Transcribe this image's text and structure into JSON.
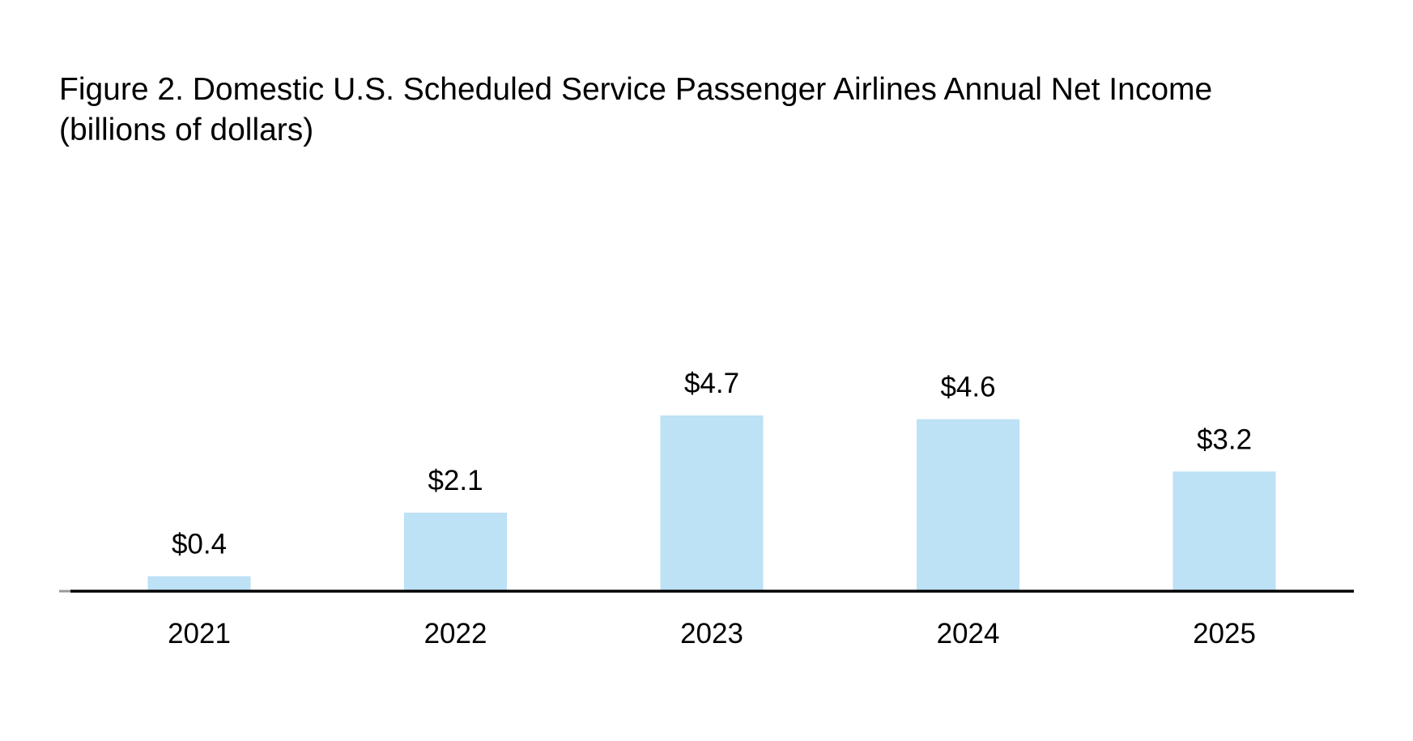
{
  "chart_data": {
    "type": "bar",
    "title": "Figure 2. Domestic U.S. Scheduled Service Passenger Airlines Annual Net Income",
    "subtitle": "(billions of dollars)",
    "categories": [
      "2021",
      "2022",
      "2023",
      "2024",
      "2025"
    ],
    "values": [
      0.4,
      2.1,
      4.7,
      4.6,
      3.2
    ],
    "data_labels": [
      "$0.4",
      "$2.1",
      "$4.7",
      "$4.6",
      "$3.2"
    ],
    "xlabel": "",
    "ylabel": "",
    "ylim": [
      0,
      4.7
    ],
    "grid": false,
    "legend": "none",
    "bar_color": "#bde1f5",
    "axis_color": "#000000"
  }
}
